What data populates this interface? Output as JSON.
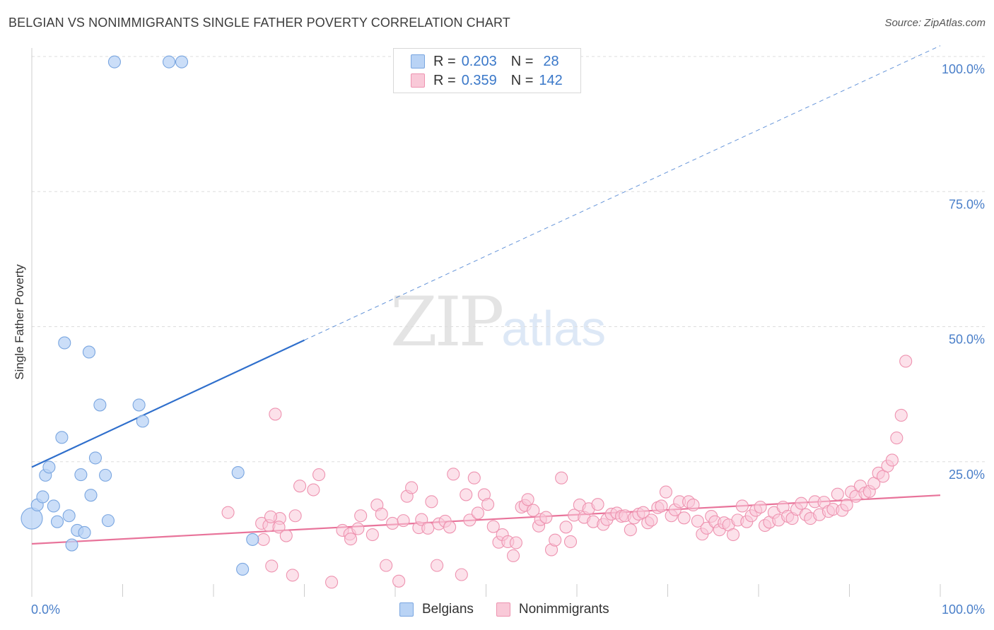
{
  "header": {
    "title": "BELGIAN VS NONIMMIGRANTS SINGLE FATHER POVERTY CORRELATION CHART",
    "source": "Source: ZipAtlas.com"
  },
  "watermark": {
    "zip": "ZIP",
    "atlas": "atlas"
  },
  "legend_top": {
    "r_label": "R =",
    "n_label": "N =",
    "belgians": {
      "r": "0.203",
      "n": "28"
    },
    "nonimmigrants": {
      "r": "0.359",
      "n": "142"
    }
  },
  "legend_bottom": {
    "belgians": "Belgians",
    "nonimmigrants": "Nonimmigrants"
  },
  "colors": {
    "belgians_fill": "#b9d3f5",
    "belgians_stroke": "#7aa6e0",
    "belgians_line": "#2f6fcc",
    "nonimmigrants_fill": "#f9c9d8",
    "nonimmigrants_stroke": "#ee93b0",
    "nonimmigrants_line": "#e8739a",
    "tick_text": "#4a7fc9",
    "grid": "#dddddd"
  },
  "chart_data": {
    "type": "scatter",
    "title": "BELGIAN VS NONIMMIGRANTS SINGLE FATHER POVERTY CORRELATION CHART",
    "xlabel": "",
    "ylabel": "Single Father Poverty",
    "xlim": [
      0,
      100
    ],
    "ylim": [
      0,
      100
    ],
    "x_tick_labels": [
      "0.0%",
      "100.0%"
    ],
    "y_ticks": [
      25,
      50,
      75,
      100
    ],
    "y_tick_labels": [
      "25.0%",
      "50.0%",
      "75.0%",
      "100.0%"
    ],
    "grid": true,
    "legend": "top-center",
    "series": [
      {
        "name": "Belgians",
        "r": 0.203,
        "n": 28,
        "trend": {
          "x0": 0,
          "y0": 24.0,
          "x1": 30,
          "y1": 47.5,
          "extended_to_x": 100,
          "extended_y": 102.0
        },
        "points": [
          {
            "x": 0.0,
            "y": 14.5,
            "big": true
          },
          {
            "x": 0.6,
            "y": 17.0
          },
          {
            "x": 1.2,
            "y": 18.5
          },
          {
            "x": 1.5,
            "y": 22.5
          },
          {
            "x": 1.9,
            "y": 24.0
          },
          {
            "x": 2.4,
            "y": 16.8
          },
          {
            "x": 2.8,
            "y": 13.9
          },
          {
            "x": 3.3,
            "y": 29.5
          },
          {
            "x": 3.6,
            "y": 47.0
          },
          {
            "x": 4.1,
            "y": 15.0
          },
          {
            "x": 4.4,
            "y": 9.6
          },
          {
            "x": 5.0,
            "y": 12.3
          },
          {
            "x": 5.4,
            "y": 22.6
          },
          {
            "x": 5.8,
            "y": 11.9
          },
          {
            "x": 6.3,
            "y": 45.3
          },
          {
            "x": 6.5,
            "y": 18.8
          },
          {
            "x": 7.0,
            "y": 25.7
          },
          {
            "x": 7.5,
            "y": 35.5
          },
          {
            "x": 8.1,
            "y": 22.5
          },
          {
            "x": 8.4,
            "y": 14.1
          },
          {
            "x": 9.1,
            "y": 99.0
          },
          {
            "x": 11.8,
            "y": 35.5
          },
          {
            "x": 12.2,
            "y": 32.5
          },
          {
            "x": 15.1,
            "y": 99.0
          },
          {
            "x": 16.5,
            "y": 99.0
          },
          {
            "x": 22.7,
            "y": 23.0
          },
          {
            "x": 23.2,
            "y": 5.1
          },
          {
            "x": 24.3,
            "y": 10.6
          }
        ]
      },
      {
        "name": "Nonimmigrants",
        "r": 0.359,
        "n": 142,
        "trend": {
          "x0": 0,
          "y0": 9.8,
          "x1": 100,
          "y1": 18.8
        },
        "points": [
          {
            "x": 21.6,
            "y": 15.6
          },
          {
            "x": 25.3,
            "y": 13.6
          },
          {
            "x": 25.5,
            "y": 10.6
          },
          {
            "x": 26.1,
            "y": 13.2
          },
          {
            "x": 26.4,
            "y": 5.7
          },
          {
            "x": 26.8,
            "y": 33.8
          },
          {
            "x": 27.3,
            "y": 14.5
          },
          {
            "x": 28.7,
            "y": 4.0
          },
          {
            "x": 29.0,
            "y": 15.0
          },
          {
            "x": 29.5,
            "y": 20.5
          },
          {
            "x": 31.0,
            "y": 19.8
          },
          {
            "x": 31.6,
            "y": 22.6
          },
          {
            "x": 33.0,
            "y": 2.7
          },
          {
            "x": 34.2,
            "y": 12.3
          },
          {
            "x": 35.0,
            "y": 11.6
          },
          {
            "x": 35.1,
            "y": 10.7
          },
          {
            "x": 35.9,
            "y": 12.6
          },
          {
            "x": 36.2,
            "y": 15.0
          },
          {
            "x": 37.5,
            "y": 11.5
          },
          {
            "x": 38.0,
            "y": 17.0
          },
          {
            "x": 38.5,
            "y": 15.3
          },
          {
            "x": 39.0,
            "y": 5.8
          },
          {
            "x": 39.7,
            "y": 13.6
          },
          {
            "x": 40.4,
            "y": 2.9
          },
          {
            "x": 40.9,
            "y": 14.1
          },
          {
            "x": 41.3,
            "y": 18.6
          },
          {
            "x": 41.8,
            "y": 20.2
          },
          {
            "x": 42.6,
            "y": 12.8
          },
          {
            "x": 42.9,
            "y": 14.3
          },
          {
            "x": 43.6,
            "y": 12.7
          },
          {
            "x": 44.0,
            "y": 17.6
          },
          {
            "x": 44.6,
            "y": 5.8
          },
          {
            "x": 44.8,
            "y": 13.5
          },
          {
            "x": 45.5,
            "y": 14.0
          },
          {
            "x": 46.0,
            "y": 12.9
          },
          {
            "x": 46.4,
            "y": 22.7
          },
          {
            "x": 47.3,
            "y": 4.1
          },
          {
            "x": 47.8,
            "y": 18.9
          },
          {
            "x": 48.2,
            "y": 14.2
          },
          {
            "x": 48.7,
            "y": 22.0
          },
          {
            "x": 49.1,
            "y": 15.5
          },
          {
            "x": 49.8,
            "y": 18.9
          },
          {
            "x": 50.2,
            "y": 17.1
          },
          {
            "x": 50.8,
            "y": 13.0
          },
          {
            "x": 51.4,
            "y": 10.1
          },
          {
            "x": 51.8,
            "y": 11.5
          },
          {
            "x": 52.4,
            "y": 10.2
          },
          {
            "x": 53.0,
            "y": 7.6
          },
          {
            "x": 53.3,
            "y": 10.0
          },
          {
            "x": 53.9,
            "y": 16.6
          },
          {
            "x": 54.3,
            "y": 16.9
          },
          {
            "x": 54.6,
            "y": 18.0
          },
          {
            "x": 55.2,
            "y": 16.0
          },
          {
            "x": 55.8,
            "y": 13.1
          },
          {
            "x": 56.0,
            "y": 14.3
          },
          {
            "x": 56.6,
            "y": 14.7
          },
          {
            "x": 57.2,
            "y": 8.7
          },
          {
            "x": 57.6,
            "y": 10.5
          },
          {
            "x": 58.3,
            "y": 22.0
          },
          {
            "x": 58.8,
            "y": 12.9
          },
          {
            "x": 59.3,
            "y": 10.2
          },
          {
            "x": 59.7,
            "y": 15.1
          },
          {
            "x": 60.3,
            "y": 17.0
          },
          {
            "x": 60.8,
            "y": 14.7
          },
          {
            "x": 61.3,
            "y": 16.3
          },
          {
            "x": 61.8,
            "y": 13.9
          },
          {
            "x": 62.3,
            "y": 17.1
          },
          {
            "x": 62.9,
            "y": 13.4
          },
          {
            "x": 63.3,
            "y": 14.3
          },
          {
            "x": 63.8,
            "y": 15.3
          },
          {
            "x": 64.4,
            "y": 15.5
          },
          {
            "x": 64.9,
            "y": 14.9
          },
          {
            "x": 65.3,
            "y": 15.0
          },
          {
            "x": 65.9,
            "y": 12.4
          },
          {
            "x": 66.3,
            "y": 14.6
          },
          {
            "x": 66.8,
            "y": 15.3
          },
          {
            "x": 67.3,
            "y": 15.6
          },
          {
            "x": 67.8,
            "y": 13.7
          },
          {
            "x": 68.2,
            "y": 14.2
          },
          {
            "x": 68.9,
            "y": 16.5
          },
          {
            "x": 69.3,
            "y": 16.8
          },
          {
            "x": 69.8,
            "y": 19.4
          },
          {
            "x": 70.4,
            "y": 15.0
          },
          {
            "x": 70.8,
            "y": 16.1
          },
          {
            "x": 71.3,
            "y": 17.6
          },
          {
            "x": 71.8,
            "y": 14.6
          },
          {
            "x": 72.3,
            "y": 17.6
          },
          {
            "x": 72.8,
            "y": 17.0
          },
          {
            "x": 73.3,
            "y": 14.0
          },
          {
            "x": 73.8,
            "y": 11.6
          },
          {
            "x": 74.3,
            "y": 12.7
          },
          {
            "x": 74.8,
            "y": 14.9
          },
          {
            "x": 75.2,
            "y": 13.9
          },
          {
            "x": 75.7,
            "y": 12.4
          },
          {
            "x": 76.2,
            "y": 13.7
          },
          {
            "x": 76.7,
            "y": 13.3
          },
          {
            "x": 77.2,
            "y": 11.5
          },
          {
            "x": 77.7,
            "y": 14.2
          },
          {
            "x": 78.2,
            "y": 16.8
          },
          {
            "x": 78.7,
            "y": 13.9
          },
          {
            "x": 79.2,
            "y": 15.0
          },
          {
            "x": 79.7,
            "y": 16.0
          },
          {
            "x": 80.2,
            "y": 16.6
          },
          {
            "x": 80.7,
            "y": 13.2
          },
          {
            "x": 81.2,
            "y": 13.8
          },
          {
            "x": 81.7,
            "y": 15.6
          },
          {
            "x": 82.2,
            "y": 14.2
          },
          {
            "x": 82.7,
            "y": 16.6
          },
          {
            "x": 83.2,
            "y": 14.9
          },
          {
            "x": 83.7,
            "y": 14.5
          },
          {
            "x": 84.2,
            "y": 16.2
          },
          {
            "x": 84.7,
            "y": 17.3
          },
          {
            "x": 85.2,
            "y": 15.2
          },
          {
            "x": 85.7,
            "y": 14.5
          },
          {
            "x": 86.2,
            "y": 17.6
          },
          {
            "x": 86.7,
            "y": 15.2
          },
          {
            "x": 87.2,
            "y": 17.5
          },
          {
            "x": 87.7,
            "y": 15.8
          },
          {
            "x": 88.2,
            "y": 16.2
          },
          {
            "x": 88.7,
            "y": 19.0
          },
          {
            "x": 89.2,
            "y": 16.0
          },
          {
            "x": 89.7,
            "y": 17.0
          },
          {
            "x": 90.2,
            "y": 19.4
          },
          {
            "x": 90.7,
            "y": 18.6
          },
          {
            "x": 91.2,
            "y": 20.5
          },
          {
            "x": 91.7,
            "y": 19.2
          },
          {
            "x": 92.2,
            "y": 19.5
          },
          {
            "x": 92.7,
            "y": 21.0
          },
          {
            "x": 93.2,
            "y": 22.9
          },
          {
            "x": 93.7,
            "y": 22.3
          },
          {
            "x": 94.2,
            "y": 24.2
          },
          {
            "x": 94.7,
            "y": 25.3
          },
          {
            "x": 95.2,
            "y": 29.4
          },
          {
            "x": 95.7,
            "y": 33.6
          },
          {
            "x": 96.2,
            "y": 43.6
          },
          {
            "x": 26.3,
            "y": 14.8
          },
          {
            "x": 27.2,
            "y": 12.9
          },
          {
            "x": 28.0,
            "y": 11.3
          }
        ]
      }
    ]
  }
}
